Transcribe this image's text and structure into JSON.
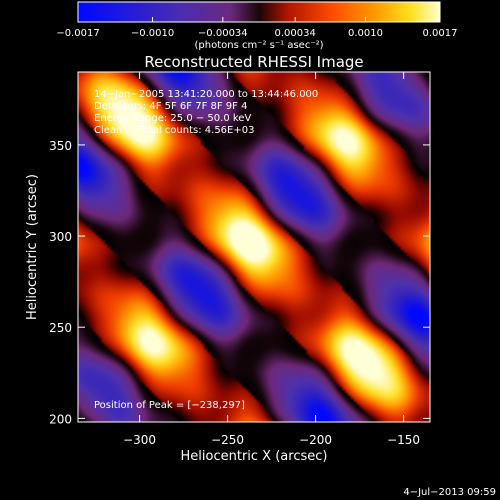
{
  "chart_data": {
    "type": "heatmap",
    "title": "Reconstructed RHESSI Image",
    "xlabel": "Heliocentric X (arcsec)",
    "ylabel": "Heliocentric Y (arcsec)",
    "xlim": [
      -335,
      -135
    ],
    "ylim": [
      198,
      390
    ],
    "x_ticks": [
      {
        "v": -300,
        "label": "−300"
      },
      {
        "v": -250,
        "label": "−250"
      },
      {
        "v": -200,
        "label": "−200"
      },
      {
        "v": -150,
        "label": "−150"
      }
    ],
    "y_ticks": [
      {
        "v": 200,
        "label": "200"
      },
      {
        "v": 250,
        "label": "250"
      },
      {
        "v": 300,
        "label": "300"
      },
      {
        "v": 350,
        "label": "350"
      }
    ],
    "colorbar": {
      "range": [
        -0.0017,
        0.0017
      ],
      "ticks": [
        {
          "v": -0.0017,
          "label": "−0.0017"
        },
        {
          "v": -0.001,
          "label": "−0.0010"
        },
        {
          "v": -0.00034,
          "label": "−0.00034"
        },
        {
          "v": 0.00034,
          "label": "0.00034"
        },
        {
          "v": 0.001,
          "label": "0.0010"
        },
        {
          "v": 0.0017,
          "label": "0.0017"
        }
      ],
      "unit_label": "(photons cm⁻² s⁻¹ asec⁻²)"
    },
    "annotations": [
      "14−Jan−2005 13:41:20.000 to 13:44:46.000",
      "Detectors: 4F 5F 6F 7F 8F 9F 4",
      "Energy Range: 25.0 − 50.0 keV",
      "Clean     Total counts: 4.56E+03"
    ],
    "peak_text": "Position of Peak = [−238,297]",
    "peak": {
      "x": -238,
      "y": 297
    },
    "timestamp": "4−Jul−2013 09:59"
  }
}
